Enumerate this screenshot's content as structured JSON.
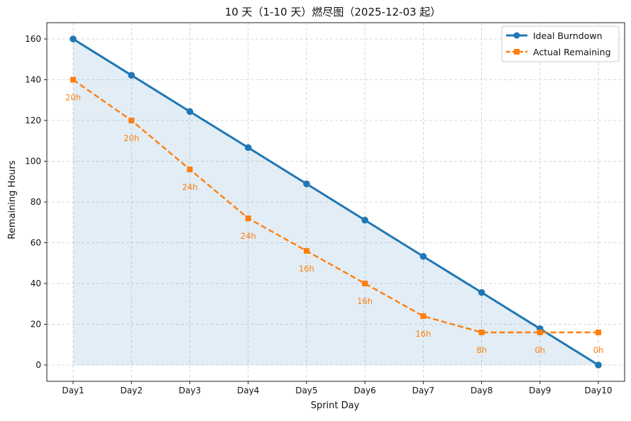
{
  "chart_data": {
    "type": "line",
    "title": "10 天（1-10 天）燃尽图（2025-12-03 起）",
    "xlabel": "Sprint Day",
    "ylabel": "Remaining Hours",
    "categories": [
      "Day1",
      "Day2",
      "Day3",
      "Day4",
      "Day5",
      "Day6",
      "Day7",
      "Day8",
      "Day9",
      "Day10"
    ],
    "ylim": [
      -8,
      168
    ],
    "yticks": [
      0,
      20,
      40,
      60,
      80,
      100,
      120,
      140,
      160
    ],
    "grid": true,
    "legend_position": "top-right",
    "series": [
      {
        "name": "Ideal Burndown",
        "color": "#1f77b4",
        "line_style": "solid",
        "marker": "circle",
        "filled_area": true,
        "values": [
          160,
          142.2,
          124.4,
          106.7,
          88.9,
          71.1,
          53.3,
          35.6,
          17.8,
          0
        ]
      },
      {
        "name": "Actual Remaining",
        "color": "#ff7f0e",
        "line_style": "dashed",
        "marker": "square",
        "values": [
          140,
          120,
          96,
          72,
          56,
          40,
          24,
          16,
          16,
          16
        ],
        "data_labels": [
          "20h",
          "20h",
          "24h",
          "24h",
          "16h",
          "16h",
          "16h",
          "8h",
          "0h",
          "0h"
        ]
      }
    ]
  }
}
